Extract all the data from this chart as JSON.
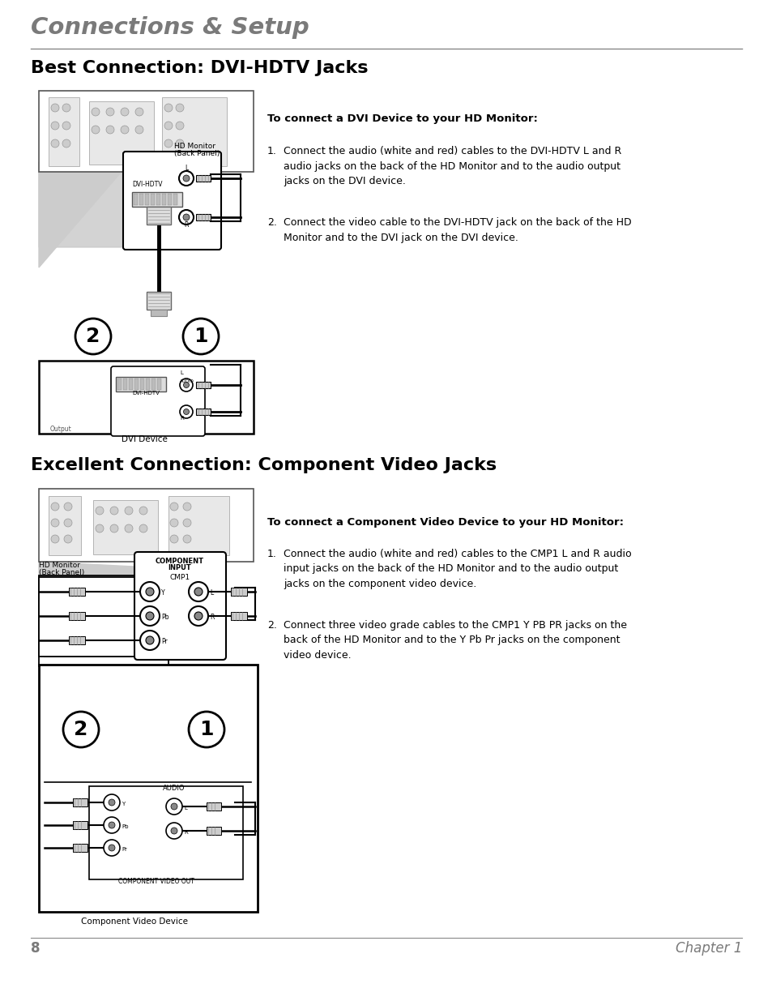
{
  "bg_color": "#ffffff",
  "header_title": "Connections & Setup",
  "header_color": "#7a7a7a",
  "section1_title": "Best Connection: DVI-HDTV Jacks",
  "section2_title": "Excellent Connection: Component Video Jacks",
  "section1_subtitle": "To connect a DVI Device to your HD Monitor:",
  "section2_subtitle": "To connect a Component Video Device to your HD Monitor:",
  "section1_steps": [
    "Connect the audio (white and red) cables to the DVI-HDTV L and R\naudio jacks on the back of the HD Monitor and to the audio output\njacks on the DVI device.",
    "Connect the video cable to the DVI-HDTV jack on the back of the HD\nMonitor and to the DVI jack on the DVI device."
  ],
  "section2_steps": [
    "Connect the audio (white and red) cables to the CMP1 L and R audio\ninput jacks on the back of the HD Monitor and to the audio output\njacks on the component video device.",
    "Connect three video grade cables to the CMP1 Y PB PR jacks on the\nback of the HD Monitor and to the Y Pb Pr jacks on the component\nvideo device."
  ],
  "footer_page": "8",
  "footer_chapter": "Chapter 1",
  "title_color": "#000000",
  "text_color": "#000000",
  "gray_text": "#7a7a7a",
  "line_color": "#888888"
}
